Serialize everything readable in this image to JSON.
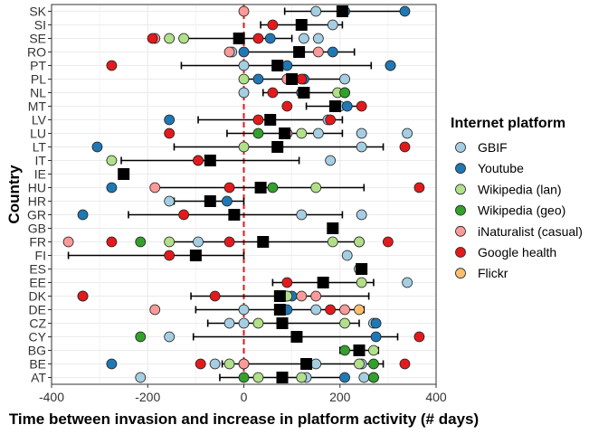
{
  "chart_data": {
    "type": "scatter",
    "title": "",
    "xlabel": "Time between invasion and increase in platform activity (# days)",
    "ylabel": "Country",
    "xlim": [
      -400,
      400
    ],
    "xticks": [
      -400,
      -200,
      0,
      200,
      400
    ],
    "xtick_labels": [
      "-400",
      "-200",
      "0",
      "200",
      "400"
    ],
    "grid": true,
    "reference_line": {
      "x": 0,
      "color": "#e31a1c",
      "style": "dashed"
    },
    "legend_position": "right",
    "legend_title": "Internet platform",
    "categories": [
      "AT",
      "BE",
      "BG",
      "CY",
      "CZ",
      "DE",
      "DK",
      "EE",
      "ES",
      "FI",
      "FR",
      "GB",
      "GR",
      "HR",
      "HU",
      "IE",
      "IT",
      "LT",
      "LU",
      "LV",
      "MT",
      "NL",
      "PL",
      "PT",
      "RO",
      "SE",
      "SI",
      "SK"
    ],
    "series": [
      {
        "name": "GBIF",
        "color": "#a6cee3",
        "points": [
          [
            "SK",
            150
          ],
          [
            "SI",
            185
          ],
          [
            "SE",
            155
          ],
          [
            "SE",
            125
          ],
          [
            "RO",
            -25
          ],
          [
            "PT",
            0
          ],
          [
            "PT",
            305
          ],
          [
            "PL",
            210
          ],
          [
            "NL",
            0
          ],
          [
            "MT",
            200
          ],
          [
            "LV",
            175
          ],
          [
            "LU",
            155
          ],
          [
            "LU",
            245
          ],
          [
            "LU",
            340
          ],
          [
            "LT",
            245
          ],
          [
            "IT",
            180
          ],
          [
            "HR",
            -155
          ],
          [
            "GR",
            120
          ],
          [
            "GR",
            245
          ],
          [
            "FR",
            -95
          ],
          [
            "FR",
            240
          ],
          [
            "FI",
            215
          ],
          [
            "ES",
            240
          ],
          [
            "EE",
            340
          ],
          [
            "DK",
            90
          ],
          [
            "DE",
            0
          ],
          [
            "DE",
            150
          ],
          [
            "CZ",
            -30
          ],
          [
            "CZ",
            0
          ],
          [
            "CZ",
            270
          ],
          [
            "CY",
            -155
          ],
          [
            "BE",
            -60
          ],
          [
            "BE",
            150
          ],
          [
            "BE",
            245
          ],
          [
            "AT",
            -215
          ],
          [
            "AT",
            130
          ],
          [
            "AT",
            250
          ]
        ]
      },
      {
        "name": "Youtube",
        "color": "#1f78b4",
        "points": [
          [
            "SK",
            210
          ],
          [
            "SK",
            335
          ],
          [
            "SI",
            120
          ],
          [
            "SE",
            55
          ],
          [
            "RO",
            0
          ],
          [
            "RO",
            115
          ],
          [
            "RO",
            185
          ],
          [
            "PT",
            90
          ],
          [
            "PT",
            305
          ],
          [
            "PL",
            30
          ],
          [
            "PL",
            125
          ],
          [
            "NL",
            120
          ],
          [
            "NL",
            210
          ],
          [
            "MT",
            215
          ],
          [
            "LV",
            -155
          ],
          [
            "LT",
            -305
          ],
          [
            "HU",
            -275
          ],
          [
            "HR",
            -35
          ],
          [
            "GR",
            -335
          ],
          [
            "GB",
            185
          ],
          [
            "ES",
            245
          ],
          [
            "DK",
            100
          ],
          [
            "DE",
            90
          ],
          [
            "CZ",
            275
          ],
          [
            "CY",
            275
          ],
          [
            "BE",
            -275
          ],
          [
            "BE",
            0
          ],
          [
            "AT",
            210
          ]
        ]
      },
      {
        "name": "Wikipedia (lan)",
        "color": "#b2df8a",
        "points": [
          [
            "SE",
            -125
          ],
          [
            "SE",
            -155
          ],
          [
            "PL",
            0
          ],
          [
            "NL",
            195
          ],
          [
            "LU",
            120
          ],
          [
            "LT",
            0
          ],
          [
            "IT",
            -275
          ],
          [
            "IE",
            -250
          ],
          [
            "HU",
            150
          ],
          [
            "FR",
            -155
          ],
          [
            "FR",
            185
          ],
          [
            "FR",
            240
          ],
          [
            "EE",
            245
          ],
          [
            "DK",
            90
          ],
          [
            "CZ",
            30
          ],
          [
            "CZ",
            210
          ],
          [
            "BG",
            270
          ],
          [
            "BE",
            -30
          ],
          [
            "BE",
            240
          ],
          [
            "AT",
            30
          ],
          [
            "AT",
            120
          ],
          [
            "AT",
            270
          ]
        ]
      },
      {
        "name": "Wikipedia (geo)",
        "color": "#33a02c",
        "points": [
          [
            "NL",
            210
          ],
          [
            "LU",
            30
          ],
          [
            "IT",
            -95
          ],
          [
            "HU",
            60
          ],
          [
            "FR",
            -215
          ],
          [
            "DK",
            -335
          ],
          [
            "CY",
            -215
          ],
          [
            "BG",
            210
          ],
          [
            "BE",
            270
          ],
          [
            "AT",
            0
          ],
          [
            "AT",
            270
          ]
        ]
      },
      {
        "name": "iNaturalist (casual)",
        "color": "#fb9a99",
        "points": [
          [
            "SK",
            0
          ],
          [
            "SE",
            -185
          ],
          [
            "RO",
            -30
          ],
          [
            "RO",
            155
          ],
          [
            "PL",
            90
          ],
          [
            "LU",
            90
          ],
          [
            "HU",
            -185
          ],
          [
            "FR",
            -365
          ],
          [
            "DK",
            120
          ],
          [
            "DK",
            150
          ],
          [
            "DE",
            -185
          ],
          [
            "DE",
            210
          ],
          [
            "BE",
            0
          ]
        ]
      },
      {
        "name": "Google health",
        "color": "#e31a1c",
        "points": [
          [
            "SI",
            60
          ],
          [
            "SE",
            -190
          ],
          [
            "SE",
            30
          ],
          [
            "PT",
            -275
          ],
          [
            "PL",
            120
          ],
          [
            "NL",
            60
          ],
          [
            "MT",
            90
          ],
          [
            "MT",
            245
          ],
          [
            "LV",
            30
          ],
          [
            "LV",
            180
          ],
          [
            "LU",
            -155
          ],
          [
            "LT",
            335
          ],
          [
            "IT",
            -95
          ],
          [
            "HU",
            -30
          ],
          [
            "HU",
            365
          ],
          [
            "GR",
            -125
          ],
          [
            "FR",
            -275
          ],
          [
            "FR",
            -30
          ],
          [
            "FR",
            300
          ],
          [
            "FI",
            -155
          ],
          [
            "EE",
            90
          ],
          [
            "DK",
            -335
          ],
          [
            "DK",
            -60
          ],
          [
            "DE",
            180
          ],
          [
            "CY",
            365
          ],
          [
            "BE",
            -90
          ],
          [
            "BE",
            335
          ]
        ]
      },
      {
        "name": "Flickr",
        "color": "#fdbf6f",
        "points": [
          [
            "DE",
            240
          ]
        ]
      }
    ],
    "mean_ci": [
      {
        "country": "SK",
        "mean": 205,
        "lo": 85,
        "hi": 330
      },
      {
        "country": "SI",
        "mean": 120,
        "lo": 35,
        "hi": 205
      },
      {
        "country": "SE",
        "mean": -10,
        "lo": -120,
        "hi": 100
      },
      {
        "country": "RO",
        "mean": 115,
        "lo": 0,
        "hi": 230
      },
      {
        "country": "PT",
        "mean": 70,
        "lo": -130,
        "hi": 265
      },
      {
        "country": "PL",
        "mean": 100,
        "lo": 0,
        "hi": 205
      },
      {
        "country": "NL",
        "mean": 125,
        "lo": 40,
        "hi": 210
      },
      {
        "country": "MT",
        "mean": 190,
        "lo": 130,
        "hi": 245
      },
      {
        "country": "LV",
        "mean": 55,
        "lo": -95,
        "hi": 205
      },
      {
        "country": "LU",
        "mean": 85,
        "lo": -35,
        "hi": 205
      },
      {
        "country": "LT",
        "mean": 70,
        "lo": -145,
        "hi": 290
      },
      {
        "country": "IT",
        "mean": -70,
        "lo": -255,
        "hi": 115
      },
      {
        "country": "IE",
        "mean": -250,
        "lo": -250,
        "hi": -250
      },
      {
        "country": "HU",
        "mean": 35,
        "lo": -180,
        "hi": 250
      },
      {
        "country": "HR",
        "mean": -70,
        "lo": -145,
        "hi": 0
      },
      {
        "country": "GR",
        "mean": -20,
        "lo": -240,
        "hi": 205
      },
      {
        "country": "GB",
        "mean": 185,
        "lo": 185,
        "hi": 185
      },
      {
        "country": "FR",
        "mean": 40,
        "lo": -155,
        "hi": 240
      },
      {
        "country": "FI",
        "mean": -100,
        "lo": -365,
        "hi": 0
      },
      {
        "country": "ES",
        "mean": 245,
        "lo": 240,
        "hi": 250
      },
      {
        "country": "EE",
        "mean": 165,
        "lo": 60,
        "hi": 270
      },
      {
        "country": "DK",
        "mean": 75,
        "lo": -110,
        "hi": 260
      },
      {
        "country": "DE",
        "mean": 75,
        "lo": -100,
        "hi": 250
      },
      {
        "country": "CZ",
        "mean": 80,
        "lo": -75,
        "hi": 240
      },
      {
        "country": "CY",
        "mean": 110,
        "lo": -105,
        "hi": 320
      },
      {
        "country": "BG",
        "mean": 240,
        "lo": 200,
        "hi": 280
      },
      {
        "country": "BE",
        "mean": 130,
        "lo": -45,
        "hi": 290
      },
      {
        "country": "AT",
        "mean": 80,
        "lo": -50,
        "hi": 205
      }
    ]
  }
}
